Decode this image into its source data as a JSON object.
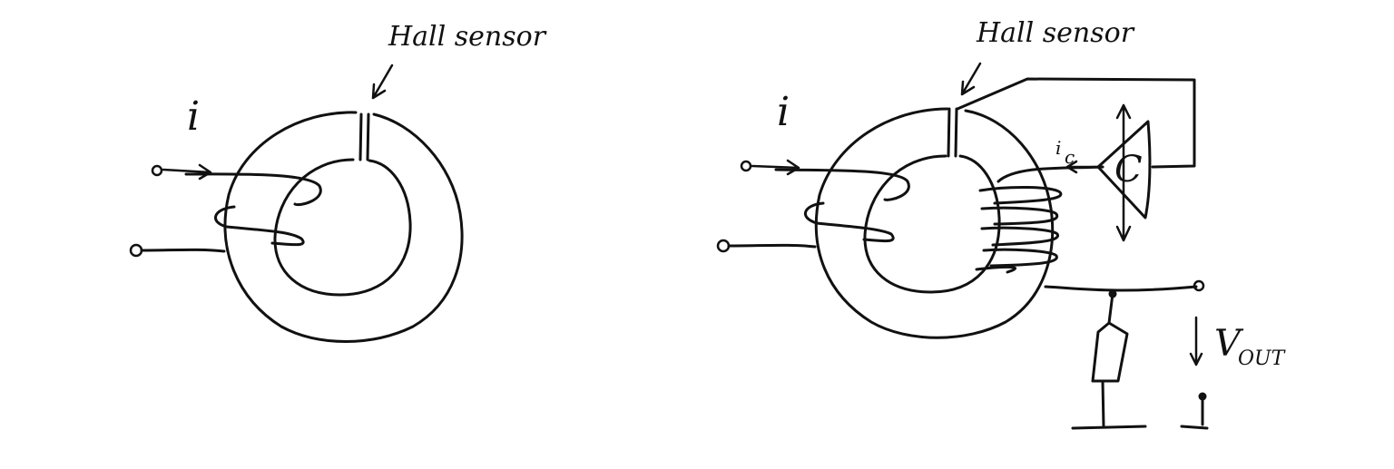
{
  "left_diagram": {
    "sensor_label": "Hall sensor",
    "current_label": "i"
  },
  "right_diagram": {
    "sensor_label": "Hall sensor",
    "current_label": "i",
    "amplifier_label": "C",
    "comp_current_label": "i",
    "comp_current_sub": "c",
    "output_label": "V",
    "output_sub": "OUT"
  }
}
